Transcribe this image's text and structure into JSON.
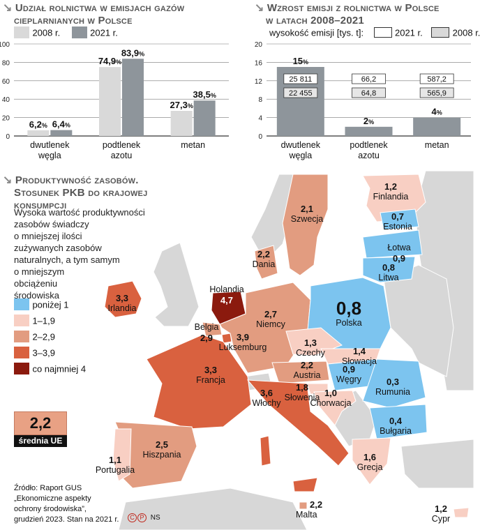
{
  "colors": {
    "c2008": "#d9d9d9",
    "c2021": "#8e959b",
    "axis": "#555555",
    "bin_lt1": "#7cc4ef",
    "bin_1_19": "#f8cfc3",
    "bin_2_29": "#e29c80",
    "bin_3_39": "#d9613f",
    "bin_4": "#8b1a0e",
    "ue_box": "#e8a184",
    "neutral": "#d7d7d7",
    "sea": "#ffffff"
  },
  "chart1": {
    "title_l1": "Udział rolnictwa w emisjach gazów",
    "title_l2": "cieplarnianych w Polsce",
    "legend": [
      "2008 r.",
      "2021 r."
    ]
  },
  "chart2": {
    "title_l1": "Wzrost emisji z rolnictwa w Polsce",
    "title_l2": "w latach 2008–2021",
    "legend_prefix": "wysokość emisji [tys. t]:",
    "legend": [
      "2021 r.",
      "2008 r."
    ]
  },
  "map": {
    "title_l1": "Produktywność zasobów.",
    "title_l2": "Stosunek PKB do krajowej",
    "title_l3": "konsumpcji",
    "desc": [
      "Wysoka wartość produktywności",
      "zasobów świadczy",
      "o mniejszej ilości",
      "zużywanych zasobów",
      "naturalnych, a tym samym",
      "o mniejszym",
      "obciążeniu",
      "środowiska"
    ],
    "legend": [
      {
        "label": "poniżej 1",
        "color_key": "bin_lt1"
      },
      {
        "label": "1–1,9",
        "color_key": "bin_1_19"
      },
      {
        "label": "2–2,9",
        "color_key": "bin_2_29"
      },
      {
        "label": "3–3,9",
        "color_key": "bin_3_39"
      },
      {
        "label": "co najmniej 4",
        "color_key": "bin_4"
      }
    ],
    "eu_avg_value": "2,2",
    "eu_avg_label": "średnia UE",
    "countries": [
      {
        "name": "Finlandia",
        "value": "1,2"
      },
      {
        "name": "Szwecja",
        "value": "2,1"
      },
      {
        "name": "Estonia",
        "value": "0,7"
      },
      {
        "name": "Łotwa",
        "value": "0,9"
      },
      {
        "name": "Litwa",
        "value": "0,8"
      },
      {
        "name": "Dania",
        "value": "2,2"
      },
      {
        "name": "Irlandia",
        "value": "3,3"
      },
      {
        "name": "Holandia",
        "value": "4,7"
      },
      {
        "name": "Belgia",
        "value": "2,9"
      },
      {
        "name": "Luksemburg",
        "value": "3,9"
      },
      {
        "name": "Niemcy",
        "value": "2,7"
      },
      {
        "name": "Polska",
        "value": "0,8"
      },
      {
        "name": "Czechy",
        "value": "1,3"
      },
      {
        "name": "Słowacja",
        "value": "1,4"
      },
      {
        "name": "Austria",
        "value": "2,2"
      },
      {
        "name": "Węgry",
        "value": "0,9"
      },
      {
        "name": "Francja",
        "value": "3,3"
      },
      {
        "name": "Słowenia",
        "value": "1,8"
      },
      {
        "name": "Chorwacja",
        "value": "1,0"
      },
      {
        "name": "Rumunia",
        "value": "0,3"
      },
      {
        "name": "Włochy",
        "value": "3,6"
      },
      {
        "name": "Bułgaria",
        "value": "0,4"
      },
      {
        "name": "Hiszpania",
        "value": "2,5"
      },
      {
        "name": "Portugalia",
        "value": "1,1"
      },
      {
        "name": "Grecja",
        "value": "1,6"
      },
      {
        "name": "Malta",
        "value": "2,2"
      },
      {
        "name": "Cypr",
        "value": "1,2"
      }
    ]
  },
  "source": [
    "Źródło: Raport GUS",
    "„Ekonomiczne aspekty",
    "ochrony środowiska”,",
    "grudzień 2023. Stan na 2021 r."
  ],
  "credit": "NS",
  "chart_data": [
    {
      "type": "bar",
      "title": "Udział rolnictwa w emisjach gazów cieplarnianych w Polsce",
      "categories": [
        "dwutlenek węgla",
        "podtlenek azotu",
        "metan"
      ],
      "series": [
        {
          "name": "2008 r.",
          "values": [
            6.2,
            74.9,
            27.3
          ],
          "labels": [
            "6,2",
            "74,9",
            "27,3"
          ]
        },
        {
          "name": "2021 r.",
          "values": [
            6.4,
            83.9,
            38.5
          ],
          "labels": [
            "6,4",
            "83,9",
            "38,5"
          ]
        }
      ],
      "unit": "%",
      "ylim": [
        0,
        100
      ],
      "yticks": [
        "0",
        "20",
        "40",
        "60",
        "80",
        "100"
      ]
    },
    {
      "type": "bar",
      "title": "Wzrost emisji z rolnictwa w Polsce w latach 2008–2021",
      "categories": [
        "dwutlenek węgla",
        "podtlenek azotu",
        "metan"
      ],
      "series": [
        {
          "name": "wzrost",
          "values": [
            15,
            2,
            4
          ],
          "labels": [
            "15",
            "2",
            "4"
          ]
        }
      ],
      "unit": "%",
      "ylim": [
        0,
        20
      ],
      "yticks": [
        "0",
        "4",
        "8",
        "12",
        "16",
        "20"
      ],
      "emissions_table": {
        "2021": [
          "25 811",
          "66,2",
          "587,2"
        ],
        "2008": [
          "22 455",
          "64,8",
          "565,9"
        ]
      }
    }
  ]
}
